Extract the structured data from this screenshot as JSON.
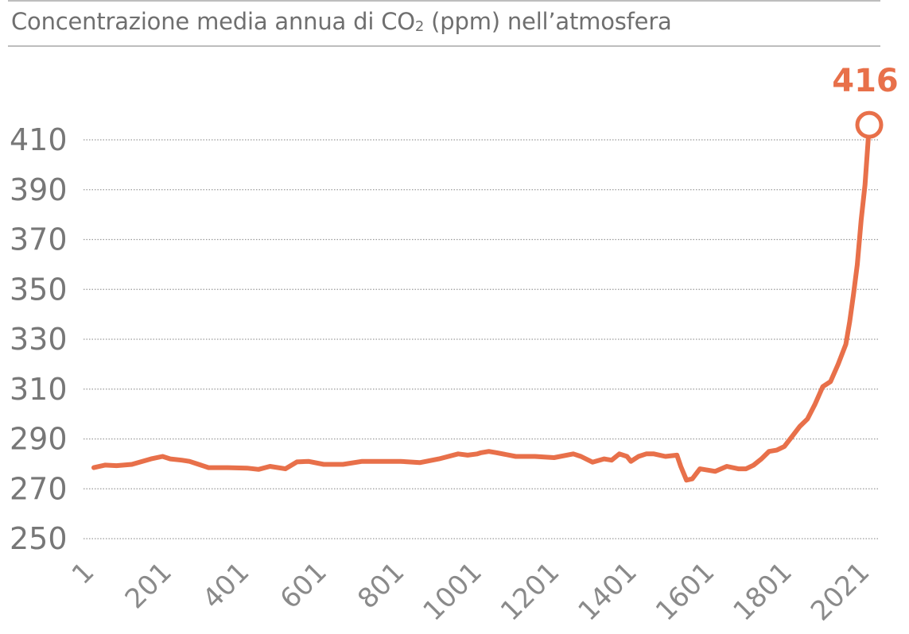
{
  "colors": {
    "line": "#e8704a",
    "grid": "#9a9a9a",
    "text": "#777777"
  },
  "chart_data": {
    "type": "line",
    "title": "Concentrazione media annua di CO2 (ppm) nell’atmosfera",
    "title_parts": {
      "prefix": "Concentrazione media annua di CO",
      "subscript": "2",
      "suffix": " (ppm) nell’atmosfera"
    },
    "xlabel": "",
    "ylabel": "",
    "xlim": [
      1,
      2021
    ],
    "ylim": [
      250,
      410
    ],
    "y_ticks": [
      410,
      390,
      370,
      350,
      330,
      310,
      290,
      270,
      250
    ],
    "x_ticks": [
      "1",
      "201",
      "401",
      "601",
      "801",
      "1001",
      "1201",
      "1401",
      "1601",
      "1801",
      "2021"
    ],
    "grid": "horizontal-dotted",
    "end_label": "416",
    "series": [
      {
        "name": "CO2 (ppm)",
        "x": [
          1,
          30,
          60,
          100,
          150,
          180,
          200,
          230,
          250,
          300,
          350,
          400,
          430,
          460,
          500,
          530,
          560,
          600,
          650,
          700,
          750,
          800,
          850,
          900,
          950,
          975,
          1000,
          1010,
          1030,
          1050,
          1100,
          1150,
          1200,
          1250,
          1270,
          1300,
          1330,
          1350,
          1370,
          1390,
          1400,
          1420,
          1440,
          1460,
          1490,
          1520,
          1530,
          1545,
          1560,
          1580,
          1600,
          1620,
          1650,
          1680,
          1700,
          1720,
          1740,
          1760,
          1780,
          1800,
          1820,
          1840,
          1860,
          1880,
          1900,
          1920,
          1940,
          1960,
          1970,
          1980,
          1990,
          2000,
          2010,
          2021
        ],
        "values": [
          278.5,
          279.5,
          279.3,
          279.8,
          282.0,
          283.0,
          282.0,
          281.5,
          281.0,
          278.5,
          278.5,
          278.3,
          277.8,
          279.0,
          278.0,
          280.8,
          281.0,
          279.8,
          279.8,
          281.0,
          281.0,
          281.0,
          280.5,
          282.0,
          284.0,
          283.5,
          284.0,
          284.5,
          285.0,
          284.5,
          283.0,
          283.0,
          282.5,
          284.0,
          283.0,
          280.7,
          282.0,
          281.5,
          284.0,
          283.0,
          281.0,
          283.0,
          284.0,
          284.0,
          283.0,
          283.5,
          279.0,
          273.5,
          274.0,
          278.0,
          277.5,
          277.0,
          279.0,
          278.0,
          278.0,
          279.5,
          282.0,
          285.0,
          285.5,
          287.0,
          291.0,
          295.0,
          298.0,
          304.0,
          311.0,
          313.0,
          320.0,
          328.0,
          337.0,
          348.0,
          360.0,
          378.0,
          392.0,
          416.0
        ]
      }
    ]
  }
}
